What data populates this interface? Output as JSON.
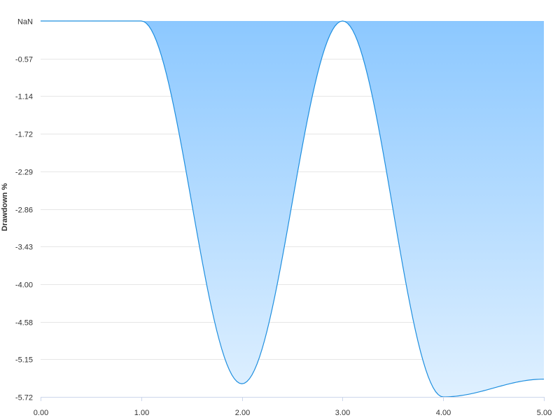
{
  "chart_data": {
    "type": "area",
    "title": "",
    "xlabel": "",
    "ylabel": "Drawdown %",
    "xlim": [
      0,
      5
    ],
    "ylim": [
      -5.72,
      0
    ],
    "x_ticks": [
      "0.00",
      "1.00",
      "2.00",
      "3.00",
      "4.00",
      "5.00"
    ],
    "y_ticks": [
      {
        "value": 0,
        "label": "NaN"
      },
      {
        "value": -0.57,
        "label": "-0.57"
      },
      {
        "value": -1.14,
        "label": "-1.14"
      },
      {
        "value": -1.72,
        "label": "-1.72"
      },
      {
        "value": -2.29,
        "label": "-2.29"
      },
      {
        "value": -2.86,
        "label": "-2.86"
      },
      {
        "value": -3.43,
        "label": "-3.43"
      },
      {
        "value": -4.0,
        "label": "-4.00"
      },
      {
        "value": -4.58,
        "label": "-4.58"
      },
      {
        "value": -5.15,
        "label": "-5.15"
      },
      {
        "value": -5.72,
        "label": "-5.72"
      }
    ],
    "grid": true,
    "legend": "none",
    "series": [
      {
        "values": [
          [
            0.0,
            0.0
          ],
          [
            0.25,
            0.0
          ],
          [
            0.5,
            0.0
          ],
          [
            0.75,
            0.0
          ],
          [
            1.0,
            0.0
          ],
          [
            2.0,
            -5.52
          ],
          [
            3.0,
            0.0
          ],
          [
            4.0,
            -5.72
          ],
          [
            5.0,
            -5.45
          ]
        ]
      }
    ],
    "colors": {
      "line": "#1f8fdf",
      "fill_top": "#8cc8ff",
      "fill_bottom": "#dff0ff",
      "marker": "#7cb5ec"
    }
  }
}
